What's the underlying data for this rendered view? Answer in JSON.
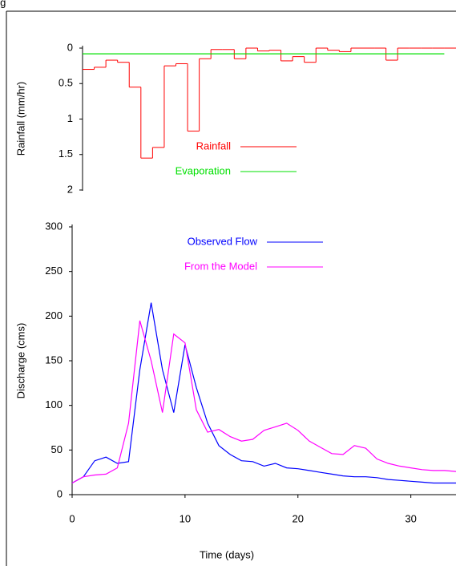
{
  "caption": "ing",
  "chart_data": [
    {
      "type": "step",
      "ylabel": "Rainfall (mm/hr)",
      "invert_y": true,
      "ylim": [
        0,
        2
      ],
      "yticks": [
        0,
        0.5,
        1,
        1.5,
        2
      ],
      "xlim": [
        0,
        32
      ],
      "x": [
        0,
        1,
        2,
        3,
        4,
        5,
        6,
        7,
        8,
        9,
        10,
        11,
        12,
        13,
        14,
        15,
        16,
        17,
        18,
        19,
        20,
        21,
        22,
        23,
        24,
        25,
        26,
        27,
        28,
        29,
        30,
        31
      ],
      "series": [
        {
          "name": "Rainfall",
          "color": "#ff0000",
          "style": "step",
          "values": [
            0.3,
            0.27,
            0.17,
            0.2,
            0.55,
            1.55,
            1.4,
            0.25,
            0.22,
            1.17,
            0.15,
            0.02,
            0.02,
            0.15,
            0,
            0.04,
            0.03,
            0.18,
            0.12,
            0.2,
            0,
            0.03,
            0.05,
            0,
            0,
            0,
            0.17,
            0,
            0,
            0,
            0,
            0
          ]
        },
        {
          "name": "Evaporation",
          "color": "#00e000",
          "style": "line",
          "values": [
            0.08,
            0.08,
            0.08,
            0.08,
            0.08,
            0.08,
            0.08,
            0.08,
            0.08,
            0.08,
            0.08,
            0.08,
            0.08,
            0.08,
            0.08,
            0.08,
            0.08,
            0.08,
            0.08,
            0.08,
            0.08,
            0.08,
            0.08,
            0.08,
            0.08,
            0.08,
            0.08,
            0.08,
            0.08,
            0.08,
            0.08,
            0.08
          ]
        }
      ]
    },
    {
      "type": "line",
      "ylabel": "Discharge (cms)",
      "xlabel": "Time (days)",
      "ylim": [
        0,
        300
      ],
      "yticks": [
        0,
        50,
        100,
        150,
        200,
        250,
        300
      ],
      "xlim": [
        0,
        34
      ],
      "xticks": [
        0,
        10,
        20,
        30
      ],
      "x": [
        0,
        1,
        2,
        3,
        4,
        5,
        6,
        7,
        8,
        9,
        10,
        11,
        12,
        13,
        14,
        15,
        16,
        17,
        18,
        19,
        20,
        21,
        22,
        23,
        24,
        25,
        26,
        27,
        28,
        29,
        30,
        31,
        32,
        33,
        34
      ],
      "series": [
        {
          "name": "Observed Flow",
          "color": "#0000ff",
          "values": [
            13,
            20,
            38,
            42,
            35,
            37,
            140,
            215,
            140,
            92,
            168,
            120,
            80,
            55,
            45,
            38,
            37,
            32,
            35,
            30,
            29,
            27,
            25,
            23,
            21,
            20,
            20,
            19,
            17,
            16,
            15,
            14,
            13,
            13,
            13
          ]
        },
        {
          "name": "From the Model",
          "color": "#ff00ff",
          "values": [
            13,
            20,
            22,
            23,
            30,
            80,
            195,
            150,
            92,
            180,
            170,
            95,
            70,
            73,
            65,
            60,
            62,
            72,
            76,
            80,
            72,
            60,
            53,
            46,
            45,
            55,
            52,
            40,
            35,
            32,
            30,
            28,
            27,
            27,
            26
          ]
        }
      ]
    }
  ]
}
